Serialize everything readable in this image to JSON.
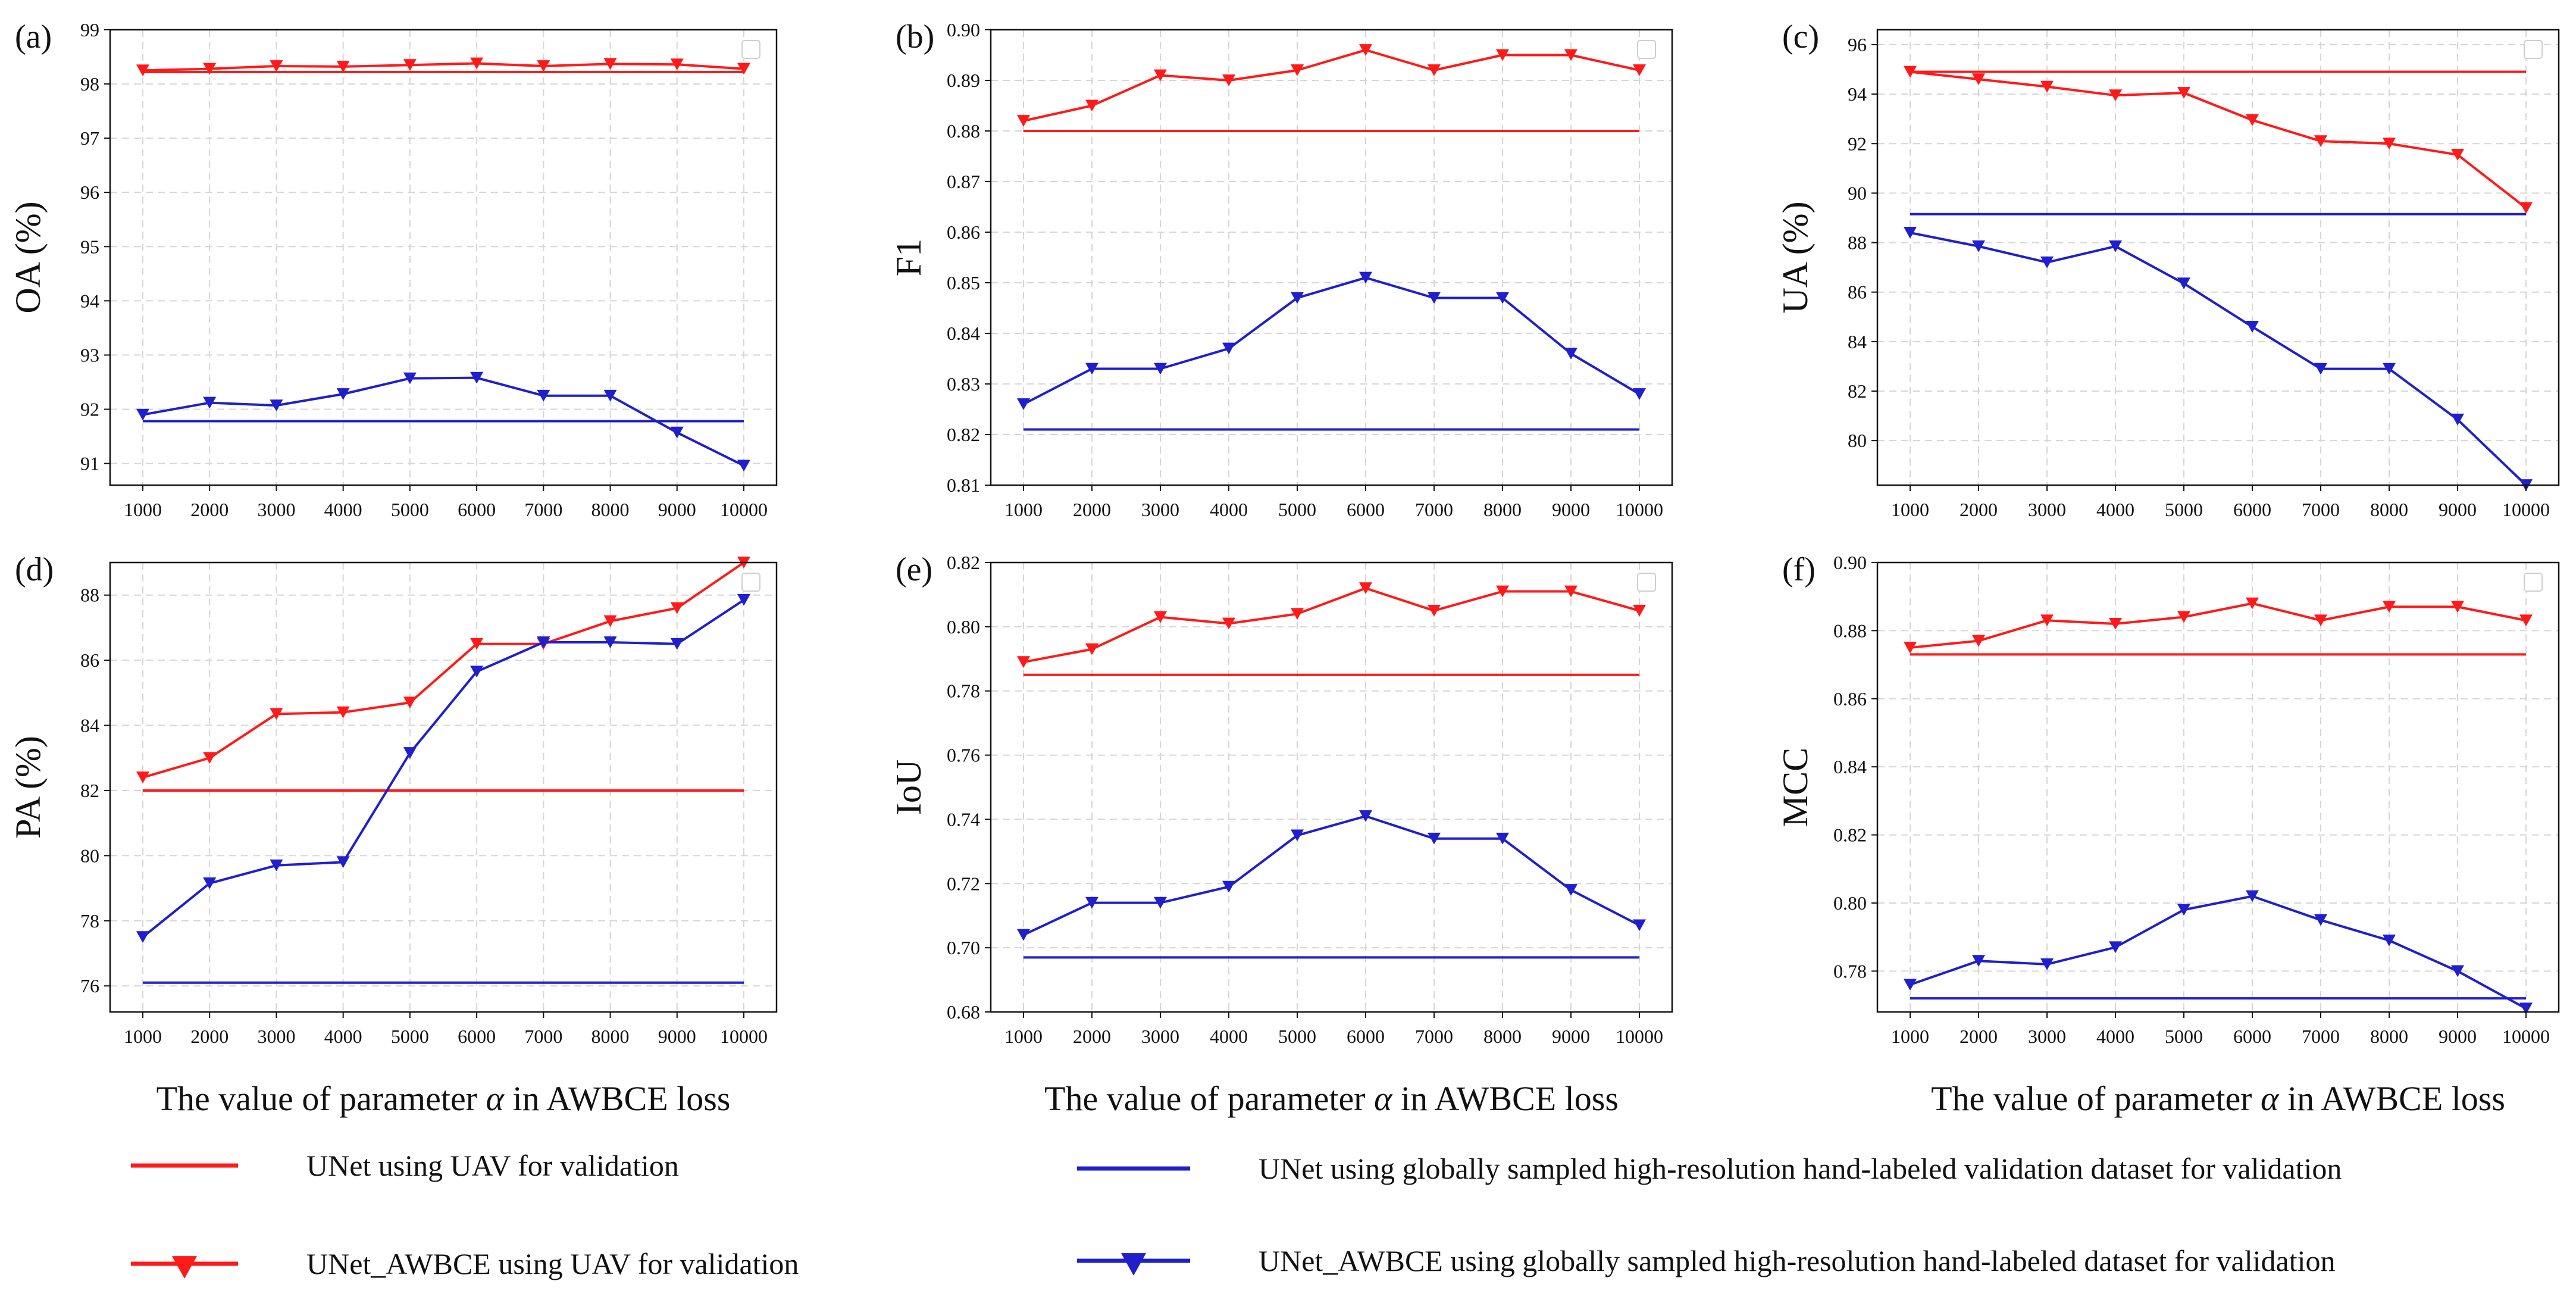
{
  "colors": {
    "red": "#ff1a1a",
    "blue": "#1f1fcc",
    "grid": "#d6d6d6"
  },
  "legend": [
    {
      "label": "UNet using UAV for validation",
      "color": "#ff1a1a",
      "marker": "none"
    },
    {
      "label": "UNet using globally sampled high-resolution hand-labeled validation dataset for validation",
      "color": "#1f1fcc",
      "marker": "none"
    },
    {
      "label": "UNet_AWBCE using UAV for validation",
      "color": "#ff1a1a",
      "marker": "triangle-down"
    },
    {
      "label": "UNet_AWBCE using globally sampled high-resolution hand-labeled dataset for validation",
      "color": "#1f1fcc",
      "marker": "triangle-down"
    }
  ],
  "chart_data": [
    {
      "panel": "(a)",
      "type": "line",
      "ylabel": "OA (%)",
      "xlabel_prefix": "The value of parameter ",
      "xlabel_symbol": "α",
      "xlabel_suffix": " in AWBCE loss",
      "x": [
        1000,
        2000,
        3000,
        4000,
        5000,
        6000,
        7000,
        8000,
        9000,
        10000
      ],
      "ylim": [
        90.6,
        99.0
      ],
      "yticks": [
        91,
        92,
        93,
        94,
        95,
        96,
        97,
        98,
        99
      ],
      "ytick_decimals": 0,
      "grid": true,
      "empty_legend_box": "top-right",
      "series": [
        {
          "color": "#ff1a1a",
          "marker": "none",
          "values": [
            98.22,
            98.22,
            98.22,
            98.22,
            98.22,
            98.22,
            98.22,
            98.22,
            98.22,
            98.22
          ]
        },
        {
          "color": "#ff1a1a",
          "marker": "triangle-down",
          "values": [
            98.25,
            98.28,
            98.33,
            98.32,
            98.35,
            98.38,
            98.33,
            98.37,
            98.36,
            98.28
          ]
        },
        {
          "color": "#1f1fcc",
          "marker": "none",
          "values": [
            91.78,
            91.78,
            91.78,
            91.78,
            91.78,
            91.78,
            91.78,
            91.78,
            91.78,
            91.78
          ]
        },
        {
          "color": "#1f1fcc",
          "marker": "triangle-down",
          "values": [
            91.9,
            92.12,
            92.07,
            92.28,
            92.57,
            92.58,
            92.25,
            92.25,
            91.57,
            90.96
          ]
        }
      ]
    },
    {
      "panel": "(b)",
      "type": "line",
      "ylabel": "F1",
      "xlabel_prefix": "The value of parameter ",
      "xlabel_symbol": "α",
      "xlabel_suffix": " in AWBCE loss",
      "x": [
        1000,
        2000,
        3000,
        4000,
        5000,
        6000,
        7000,
        8000,
        9000,
        10000
      ],
      "ylim": [
        0.81,
        0.9
      ],
      "yticks": [
        0.81,
        0.82,
        0.83,
        0.84,
        0.85,
        0.86,
        0.87,
        0.88,
        0.89,
        0.9
      ],
      "ytick_decimals": 2,
      "grid": true,
      "empty_legend_box": "top-right",
      "series": [
        {
          "color": "#ff1a1a",
          "marker": "none",
          "values": [
            0.88,
            0.88,
            0.88,
            0.88,
            0.88,
            0.88,
            0.88,
            0.88,
            0.88,
            0.88
          ]
        },
        {
          "color": "#ff1a1a",
          "marker": "triangle-down",
          "values": [
            0.882,
            0.885,
            0.891,
            0.89,
            0.892,
            0.896,
            0.892,
            0.895,
            0.895,
            0.892
          ]
        },
        {
          "color": "#1f1fcc",
          "marker": "none",
          "values": [
            0.821,
            0.821,
            0.821,
            0.821,
            0.821,
            0.821,
            0.821,
            0.821,
            0.821,
            0.821
          ]
        },
        {
          "color": "#1f1fcc",
          "marker": "triangle-down",
          "values": [
            0.826,
            0.833,
            0.833,
            0.837,
            0.847,
            0.851,
            0.847,
            0.847,
            0.836,
            0.828
          ]
        }
      ]
    },
    {
      "panel": "(c)",
      "type": "line",
      "ylabel": "UA (%)",
      "xlabel_prefix": "The value of parameter ",
      "xlabel_symbol": "α",
      "xlabel_suffix": " in AWBCE loss",
      "x": [
        1000,
        2000,
        3000,
        4000,
        5000,
        6000,
        7000,
        8000,
        9000,
        10000
      ],
      "ylim": [
        78.2,
        96.6
      ],
      "yticks": [
        80,
        82,
        84,
        86,
        88,
        90,
        92,
        94,
        96
      ],
      "ytick_decimals": 0,
      "grid": true,
      "empty_legend_box": "top-right",
      "series": [
        {
          "color": "#ff1a1a",
          "marker": "none",
          "values": [
            94.9,
            94.9,
            94.9,
            94.9,
            94.9,
            94.9,
            94.9,
            94.9,
            94.9,
            94.9
          ]
        },
        {
          "color": "#ff1a1a",
          "marker": "triangle-down",
          "values": [
            94.9,
            94.6,
            94.3,
            93.95,
            94.05,
            92.95,
            92.1,
            92.0,
            91.55,
            89.4
          ]
        },
        {
          "color": "#1f1fcc",
          "marker": "none",
          "values": [
            89.15,
            89.15,
            89.15,
            89.15,
            89.15,
            89.15,
            89.15,
            89.15,
            89.15,
            89.15
          ]
        },
        {
          "color": "#1f1fcc",
          "marker": "triangle-down",
          "values": [
            88.4,
            87.85,
            87.2,
            87.85,
            86.35,
            84.6,
            82.9,
            82.9,
            80.85,
            78.2
          ]
        }
      ]
    },
    {
      "panel": "(d)",
      "type": "line",
      "ylabel": "PA (%)",
      "xlabel_prefix": "The value of parameter ",
      "xlabel_symbol": "α",
      "xlabel_suffix": " in AWBCE loss",
      "x": [
        1000,
        2000,
        3000,
        4000,
        5000,
        6000,
        7000,
        8000,
        9000,
        10000
      ],
      "ylim": [
        75.2,
        89.0
      ],
      "yticks": [
        76,
        78,
        80,
        82,
        84,
        86,
        88
      ],
      "ytick_decimals": 0,
      "grid": true,
      "empty_legend_box": "top-right",
      "series": [
        {
          "color": "#ff1a1a",
          "marker": "none",
          "values": [
            82.0,
            82.0,
            82.0,
            82.0,
            82.0,
            82.0,
            82.0,
            82.0,
            82.0,
            82.0
          ]
        },
        {
          "color": "#ff1a1a",
          "marker": "triangle-down",
          "values": [
            82.4,
            83.0,
            84.35,
            84.4,
            84.7,
            86.5,
            86.5,
            87.2,
            87.6,
            89.0
          ]
        },
        {
          "color": "#1f1fcc",
          "marker": "none",
          "values": [
            76.1,
            76.1,
            76.1,
            76.1,
            76.1,
            76.1,
            76.1,
            76.1,
            76.1,
            76.1
          ]
        },
        {
          "color": "#1f1fcc",
          "marker": "triangle-down",
          "values": [
            77.5,
            79.15,
            79.7,
            79.8,
            83.15,
            85.65,
            86.55,
            86.55,
            86.5,
            87.85
          ]
        }
      ]
    },
    {
      "panel": "(e)",
      "type": "line",
      "ylabel": "IoU",
      "xlabel_prefix": "The value of parameter ",
      "xlabel_symbol": "α",
      "xlabel_suffix": " in AWBCE loss",
      "x": [
        1000,
        2000,
        3000,
        4000,
        5000,
        6000,
        7000,
        8000,
        9000,
        10000
      ],
      "ylim": [
        0.68,
        0.82
      ],
      "yticks": [
        0.68,
        0.7,
        0.72,
        0.74,
        0.76,
        0.78,
        0.8,
        0.82
      ],
      "ytick_decimals": 2,
      "grid": true,
      "empty_legend_box": "top-right",
      "series": [
        {
          "color": "#ff1a1a",
          "marker": "none",
          "values": [
            0.785,
            0.785,
            0.785,
            0.785,
            0.785,
            0.785,
            0.785,
            0.785,
            0.785,
            0.785
          ]
        },
        {
          "color": "#ff1a1a",
          "marker": "triangle-down",
          "values": [
            0.789,
            0.793,
            0.803,
            0.801,
            0.804,
            0.812,
            0.805,
            0.811,
            0.811,
            0.805
          ]
        },
        {
          "color": "#1f1fcc",
          "marker": "none",
          "values": [
            0.697,
            0.697,
            0.697,
            0.697,
            0.697,
            0.697,
            0.697,
            0.697,
            0.697,
            0.697
          ]
        },
        {
          "color": "#1f1fcc",
          "marker": "triangle-down",
          "values": [
            0.704,
            0.714,
            0.714,
            0.719,
            0.735,
            0.741,
            0.734,
            0.734,
            0.718,
            0.707
          ]
        }
      ]
    },
    {
      "panel": "(f)",
      "type": "line",
      "ylabel": "MCC",
      "xlabel_prefix": "The value of parameter ",
      "xlabel_symbol": "α",
      "xlabel_suffix": " in AWBCE loss",
      "x": [
        1000,
        2000,
        3000,
        4000,
        5000,
        6000,
        7000,
        8000,
        9000,
        10000
      ],
      "ylim": [
        0.768,
        0.9
      ],
      "yticks": [
        0.78,
        0.8,
        0.82,
        0.84,
        0.86,
        0.88,
        0.9
      ],
      "ytick_decimals": 2,
      "grid": true,
      "empty_legend_box": "top-right",
      "series": [
        {
          "color": "#ff1a1a",
          "marker": "none",
          "values": [
            0.873,
            0.873,
            0.873,
            0.873,
            0.873,
            0.873,
            0.873,
            0.873,
            0.873,
            0.873
          ]
        },
        {
          "color": "#ff1a1a",
          "marker": "triangle-down",
          "values": [
            0.875,
            0.877,
            0.883,
            0.882,
            0.884,
            0.888,
            0.883,
            0.887,
            0.887,
            0.883
          ]
        },
        {
          "color": "#1f1fcc",
          "marker": "none",
          "values": [
            0.772,
            0.772,
            0.772,
            0.772,
            0.772,
            0.772,
            0.772,
            0.772,
            0.772,
            0.772
          ]
        },
        {
          "color": "#1f1fcc",
          "marker": "triangle-down",
          "values": [
            0.776,
            0.783,
            0.782,
            0.787,
            0.798,
            0.802,
            0.795,
            0.789,
            0.78,
            0.769
          ]
        }
      ]
    }
  ]
}
